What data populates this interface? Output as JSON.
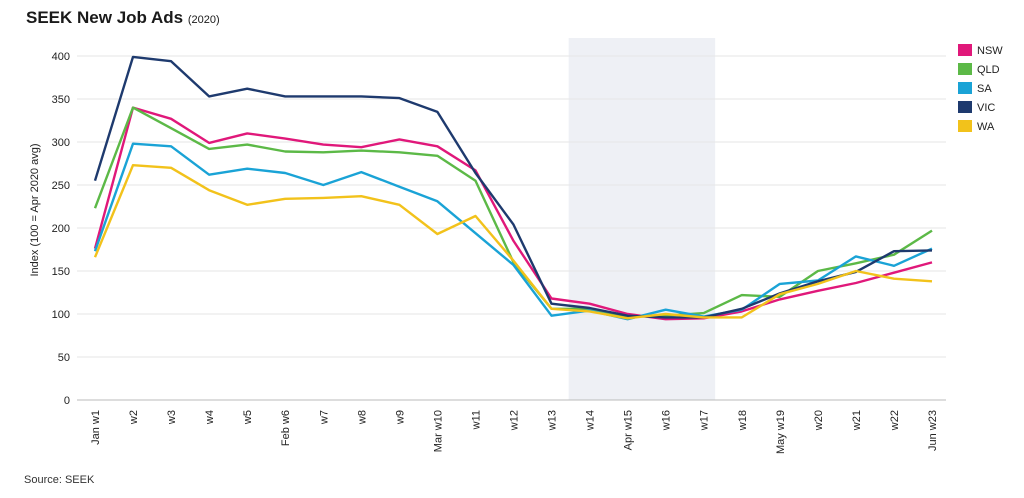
{
  "title": "SEEK New Job Ads",
  "title_note": "(2020)",
  "source": "Source: SEEK",
  "chart_data": {
    "type": "line",
    "title": "SEEK New Job Ads",
    "ylabel": "Index (100 = Apr 2020 avg)",
    "xlabel": "",
    "ylim": [
      0,
      400
    ],
    "yticks": [
      0,
      50,
      100,
      150,
      200,
      250,
      300,
      350,
      400
    ],
    "grid": "horizontal",
    "legend": "top-right",
    "shaded_region": [
      "w14",
      "w17"
    ],
    "shade_color": "#eef0f5",
    "categories": [
      "Jan w1",
      "w2",
      "w3",
      "w4",
      "w5",
      "Feb w6",
      "w7",
      "w8",
      "w9",
      "Mar w10",
      "w11",
      "w12",
      "w13",
      "w14",
      "Apr w15",
      "w16",
      "w17",
      "w18",
      "May w19",
      "w20",
      "w21",
      "w22",
      "Jun w23"
    ],
    "series": [
      {
        "name": "NSW",
        "color": "#e0187a",
        "values": [
          176,
          340,
          327,
          299,
          310,
          304,
          297,
          294,
          303,
          295,
          267,
          185,
          118,
          112,
          100,
          94,
          95,
          103,
          117,
          127,
          136,
          148,
          160
        ]
      },
      {
        "name": "QLD",
        "color": "#5cb947",
        "values": [
          223,
          340,
          316,
          292,
          297,
          289,
          288,
          290,
          288,
          284,
          255,
          160,
          106,
          106,
          97,
          98,
          101,
          122,
          120,
          150,
          159,
          169,
          197
        ]
      },
      {
        "name": "SA",
        "color": "#1aa3d6",
        "values": [
          173,
          298,
          295,
          262,
          269,
          264,
          250,
          265,
          248,
          231,
          194,
          157,
          98,
          104,
          94,
          105,
          97,
          105,
          135,
          139,
          167,
          156,
          176
        ]
      },
      {
        "name": "VIC",
        "color": "#1e3a6e",
        "values": [
          255,
          399,
          394,
          353,
          362,
          353,
          353,
          353,
          351,
          335,
          264,
          204,
          112,
          107,
          98,
          96,
          96,
          106,
          124,
          138,
          149,
          173,
          174
        ]
      },
      {
        "name": "WA",
        "color": "#f2c21b",
        "values": [
          166,
          273,
          270,
          244,
          227,
          234,
          235,
          237,
          227,
          193,
          214,
          162,
          106,
          103,
          95,
          100,
          96,
          96,
          123,
          135,
          150,
          141,
          138
        ]
      }
    ]
  }
}
